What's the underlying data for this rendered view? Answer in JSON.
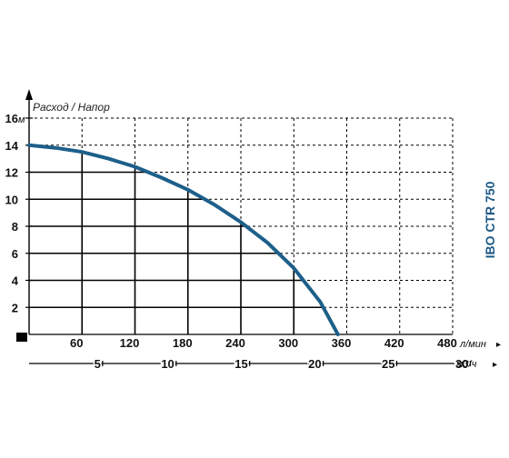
{
  "chart_data": {
    "type": "line",
    "title": "Расход / Напор",
    "model": "IBO CTR 750",
    "ylim": [
      0,
      16
    ],
    "y_ticks": [
      "2",
      "4",
      "6",
      "8",
      "10",
      "12",
      "14",
      "16"
    ],
    "y_unit": "м",
    "xlim": [
      0,
      480
    ],
    "x_ticks": [
      "60",
      "120",
      "180",
      "240",
      "300",
      "360",
      "420",
      "480"
    ],
    "x_unit": "л/мин",
    "x2_ticks": [
      "5",
      "10",
      "15",
      "20",
      "25",
      "30"
    ],
    "x2_unit": "м3/ч",
    "grid": true,
    "series": [
      {
        "color": "#1d5f8a",
        "x": [
          0,
          30,
          60,
          90,
          120,
          150,
          180,
          210,
          240,
          270,
          300,
          330,
          350
        ],
        "y": [
          14,
          13.8,
          13.5,
          13.0,
          12.4,
          11.6,
          10.7,
          9.6,
          8.3,
          6.8,
          4.9,
          2.4,
          0
        ]
      }
    ]
  }
}
